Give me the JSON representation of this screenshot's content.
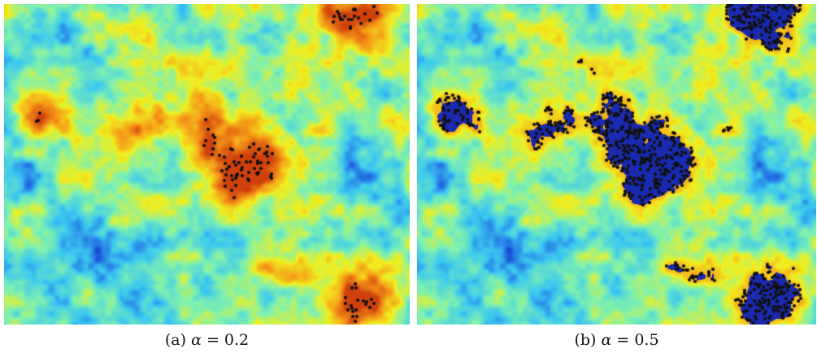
{
  "figure": {
    "panels": [
      {
        "id": "a",
        "tag": "(a)",
        "symbol": "α",
        "rest": " = 0.2",
        "alpha": 0.2
      },
      {
        "id": "b",
        "tag": "(b)",
        "symbol": "α",
        "rest": " = 0.5",
        "alpha": 0.5
      }
    ],
    "colormap": [
      "#0a1a9a",
      "#1e5fe0",
      "#3cc8f0",
      "#7ef0b0",
      "#f0f020",
      "#f59a18",
      "#d0400c"
    ],
    "marker_color": "#111111",
    "fill_color": "#1a2ab0"
  }
}
